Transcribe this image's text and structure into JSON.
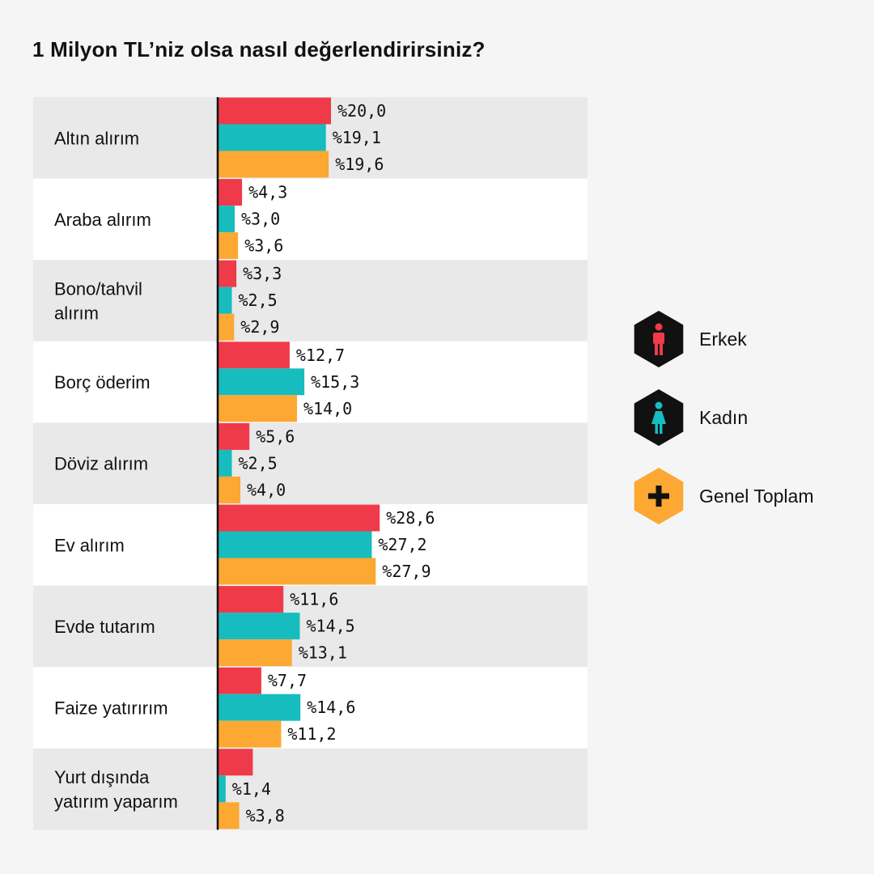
{
  "title": "1 Milyon TL’niz olsa nasıl değerlendirirsiniz?",
  "colors": {
    "erkek": "#ef3a4a",
    "kadin": "#17bcbe",
    "genel": "#fca833",
    "hex_dark": "#111111"
  },
  "legend": [
    {
      "name": "Erkek",
      "icon": "male-icon",
      "hex": "#111111",
      "glyph": "#ef3a4a"
    },
    {
      "name": "Kadın",
      "icon": "female-icon",
      "hex": "#111111",
      "glyph": "#17bcbe"
    },
    {
      "name": "Genel Toplam",
      "icon": "plus-icon",
      "hex": "#fca833",
      "glyph": "#111111"
    }
  ],
  "chart_data": {
    "type": "bar",
    "orientation": "horizontal",
    "title": "1 Milyon TL’niz olsa nasıl değerlendirirsiniz?",
    "categories": [
      [
        "Altın alırım"
      ],
      [
        "Araba alırım"
      ],
      [
        "Bono/tahvil",
        "alırım"
      ],
      [
        "Borç öderim"
      ],
      [
        "Döviz alırım"
      ],
      [
        "Ev alırım"
      ],
      [
        "Evde tutarım"
      ],
      [
        "Faize yatırırım"
      ],
      [
        "Yurt dışında",
        "yatırım yaparım"
      ]
    ],
    "series": [
      {
        "name": "Erkek",
        "color": "#ef3a4a",
        "values": [
          20.0,
          4.3,
          3.3,
          12.7,
          5.6,
          28.6,
          11.6,
          7.7,
          6.2
        ],
        "labels": [
          "%20,0",
          "%4,3",
          "%3,3",
          "%12,7",
          "%5,6",
          "%28,6",
          "%11,6",
          "%7,7",
          ""
        ]
      },
      {
        "name": "Kadın",
        "color": "#17bcbe",
        "values": [
          19.1,
          3.0,
          2.5,
          15.3,
          2.5,
          27.2,
          14.5,
          14.6,
          1.4
        ],
        "labels": [
          "%19,1",
          "%3,0",
          "%2,5",
          "%15,3",
          "%2,5",
          "%27,2",
          "%14,5",
          "%14,6",
          "%1,4"
        ]
      },
      {
        "name": "Genel Toplam",
        "color": "#fca833",
        "values": [
          19.6,
          3.6,
          2.9,
          14.0,
          4.0,
          27.9,
          13.1,
          11.2,
          3.8
        ],
        "labels": [
          "%19,6",
          "%3,6",
          "%2,9",
          "%14,0",
          "%4,0",
          "%27,9",
          "%13,1",
          "%11,2",
          "%3,8"
        ]
      }
    ],
    "xlim": [
      0,
      30
    ],
    "grid": false,
    "legend_position": "right"
  }
}
